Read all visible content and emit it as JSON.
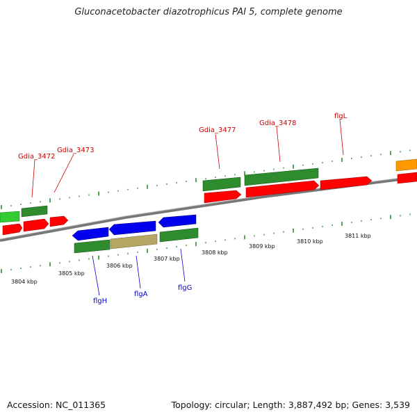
{
  "title": "Gluconacetobacter diazotrophicus PAI 5, complete genome",
  "footer": {
    "accession": "Accession: NC_011365",
    "topology": "Topology: circular; Length: 3,887,492 bp; Genes: 3,539"
  },
  "colors": {
    "red": "#ff0000",
    "dark_green": "#2e8b2e",
    "light_green": "#33cc33",
    "blue": "#0000ee",
    "tan": "#b5a663",
    "orange": "#ff9900",
    "label_red": "#cc0000",
    "label_blue": "#0000cc"
  },
  "scale_labels": [
    "3804 kbp",
    "3805 kbp",
    "3806 kbp",
    "3807 kbp",
    "3808 kbp",
    "3809 kbp",
    "3810 kbp",
    "3811 kbp"
  ],
  "upper_labels": [
    "Gdia_3472",
    "Gdia_3473",
    "Gdia_3477",
    "Gdia_3478",
    "flgL"
  ],
  "lower_labels": [
    "flgH",
    "flgA",
    "flgG"
  ]
}
